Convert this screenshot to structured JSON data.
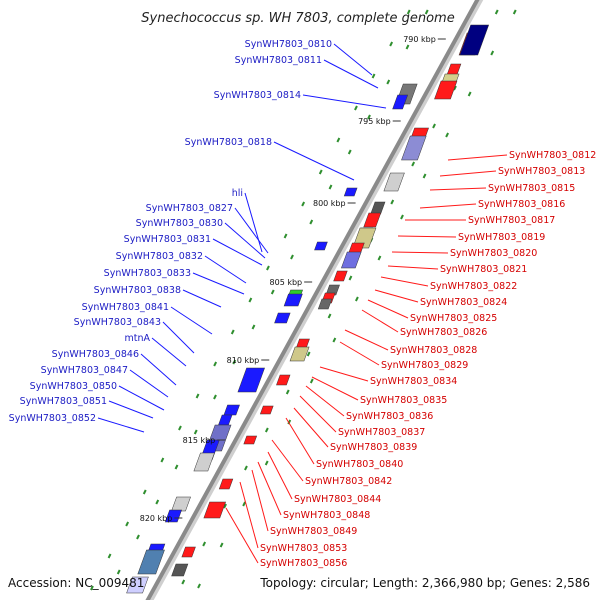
{
  "title": "Synechococcus sp. WH 7803, complete genome",
  "accession_text": "Accession: NC_009481",
  "topology_text": "Topology: circular; Length: 2,366,980 bp; Genes: 2,586",
  "colors": {
    "backbone": "#8a8a8a",
    "forward": "#1a1aff",
    "reverse": "#ff1a1a",
    "label_forward": "#1c1cc4",
    "label_reverse": "#d40000",
    "tick": "#2f8f2f"
  },
  "scale_ticks": [
    "790 kbp",
    "795 kbp",
    "800 kbp",
    "805 kbp",
    "810 kbp",
    "815 kbp",
    "820 kbp"
  ],
  "forward_labels": [
    "SynWH7803_0810",
    "SynWH7803_0811",
    "SynWH7803_0814",
    "SynWH7803_0818",
    "hli",
    "SynWH7803_0827",
    "SynWH7803_0830",
    "SynWH7803_0831",
    "SynWH7803_0832",
    "SynWH7803_0833",
    "SynWH7803_0838",
    "SynWH7803_0841",
    "SynWH7803_0843",
    "mtnA",
    "SynWH7803_0846",
    "SynWH7803_0847",
    "SynWH7803_0850",
    "SynWH7803_0851",
    "SynWH7803_0852"
  ],
  "reverse_labels": [
    "SynWH7803_0812",
    "SynWH7803_0813",
    "SynWH7803_0815",
    "SynWH7803_0816",
    "SynWH7803_0817",
    "SynWH7803_0819",
    "SynWH7803_0820",
    "SynWH7803_0821",
    "SynWH7803_0822",
    "SynWH7803_0824",
    "SynWH7803_0825",
    "SynWH7803_0826",
    "SynWH7803_0828",
    "SynWH7803_0829",
    "SynWH7803_0834",
    "SynWH7803_0835",
    "SynWH7803_0836",
    "SynWH7803_0837",
    "SynWH7803_0839",
    "SynWH7803_0840",
    "SynWH7803_0842",
    "SynWH7803_0844",
    "SynWH7803_0848",
    "SynWH7803_0849",
    "SynWH7803_0853",
    "SynWH7803_0856"
  ]
}
